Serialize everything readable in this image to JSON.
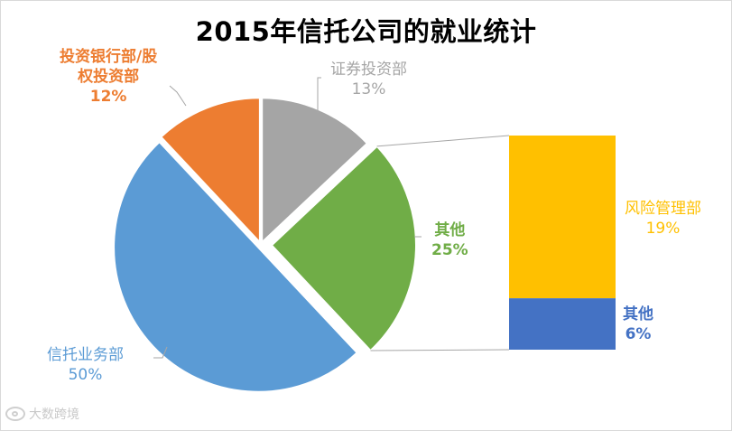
{
  "chart_data": {
    "type": "pie",
    "title": "2015年信托公司的就业统计",
    "slices": [
      {
        "label": "证券投资部",
        "value": 13,
        "value_label": "13%",
        "color": "#a5a5a5"
      },
      {
        "label": "其他",
        "value": 25,
        "value_label": "25%",
        "color": "#70ad47"
      },
      {
        "label": "信托业务部",
        "value": 50,
        "value_label": "50%",
        "color": "#5b9bd5"
      },
      {
        "label": "投资银行部/股权投资部",
        "value": 12,
        "value_label": "12%",
        "color": "#ed7d31"
      }
    ],
    "breakout": {
      "type": "stacked-bar",
      "of_slice": "其他",
      "segments": [
        {
          "label": "风险管理部",
          "value": 19,
          "value_label": "19%",
          "color": "#ffc000"
        },
        {
          "label": "其他",
          "value": 6,
          "value_label": "6%",
          "color": "#4472c4"
        }
      ]
    }
  },
  "labels": {
    "securities": {
      "name": "证券投资部",
      "pct": "13%",
      "color": "#a5a5a5"
    },
    "other_slice": {
      "name": "其他",
      "pct": "25%",
      "color": "#70ad47"
    },
    "trust": {
      "name": "信托业务部",
      "pct": "50%",
      "color": "#5b9bd5"
    },
    "ibank": {
      "name_line1": "投资银行部/股",
      "name_line2": "权投资部",
      "pct": "12%",
      "color": "#ed7d31"
    },
    "risk": {
      "name": "风险管理部",
      "pct": "19%",
      "color": "#ffc000"
    },
    "other_bar": {
      "name": "其他",
      "pct": "6%",
      "color": "#4472c4"
    }
  },
  "watermark": {
    "text": "大数跨境"
  }
}
